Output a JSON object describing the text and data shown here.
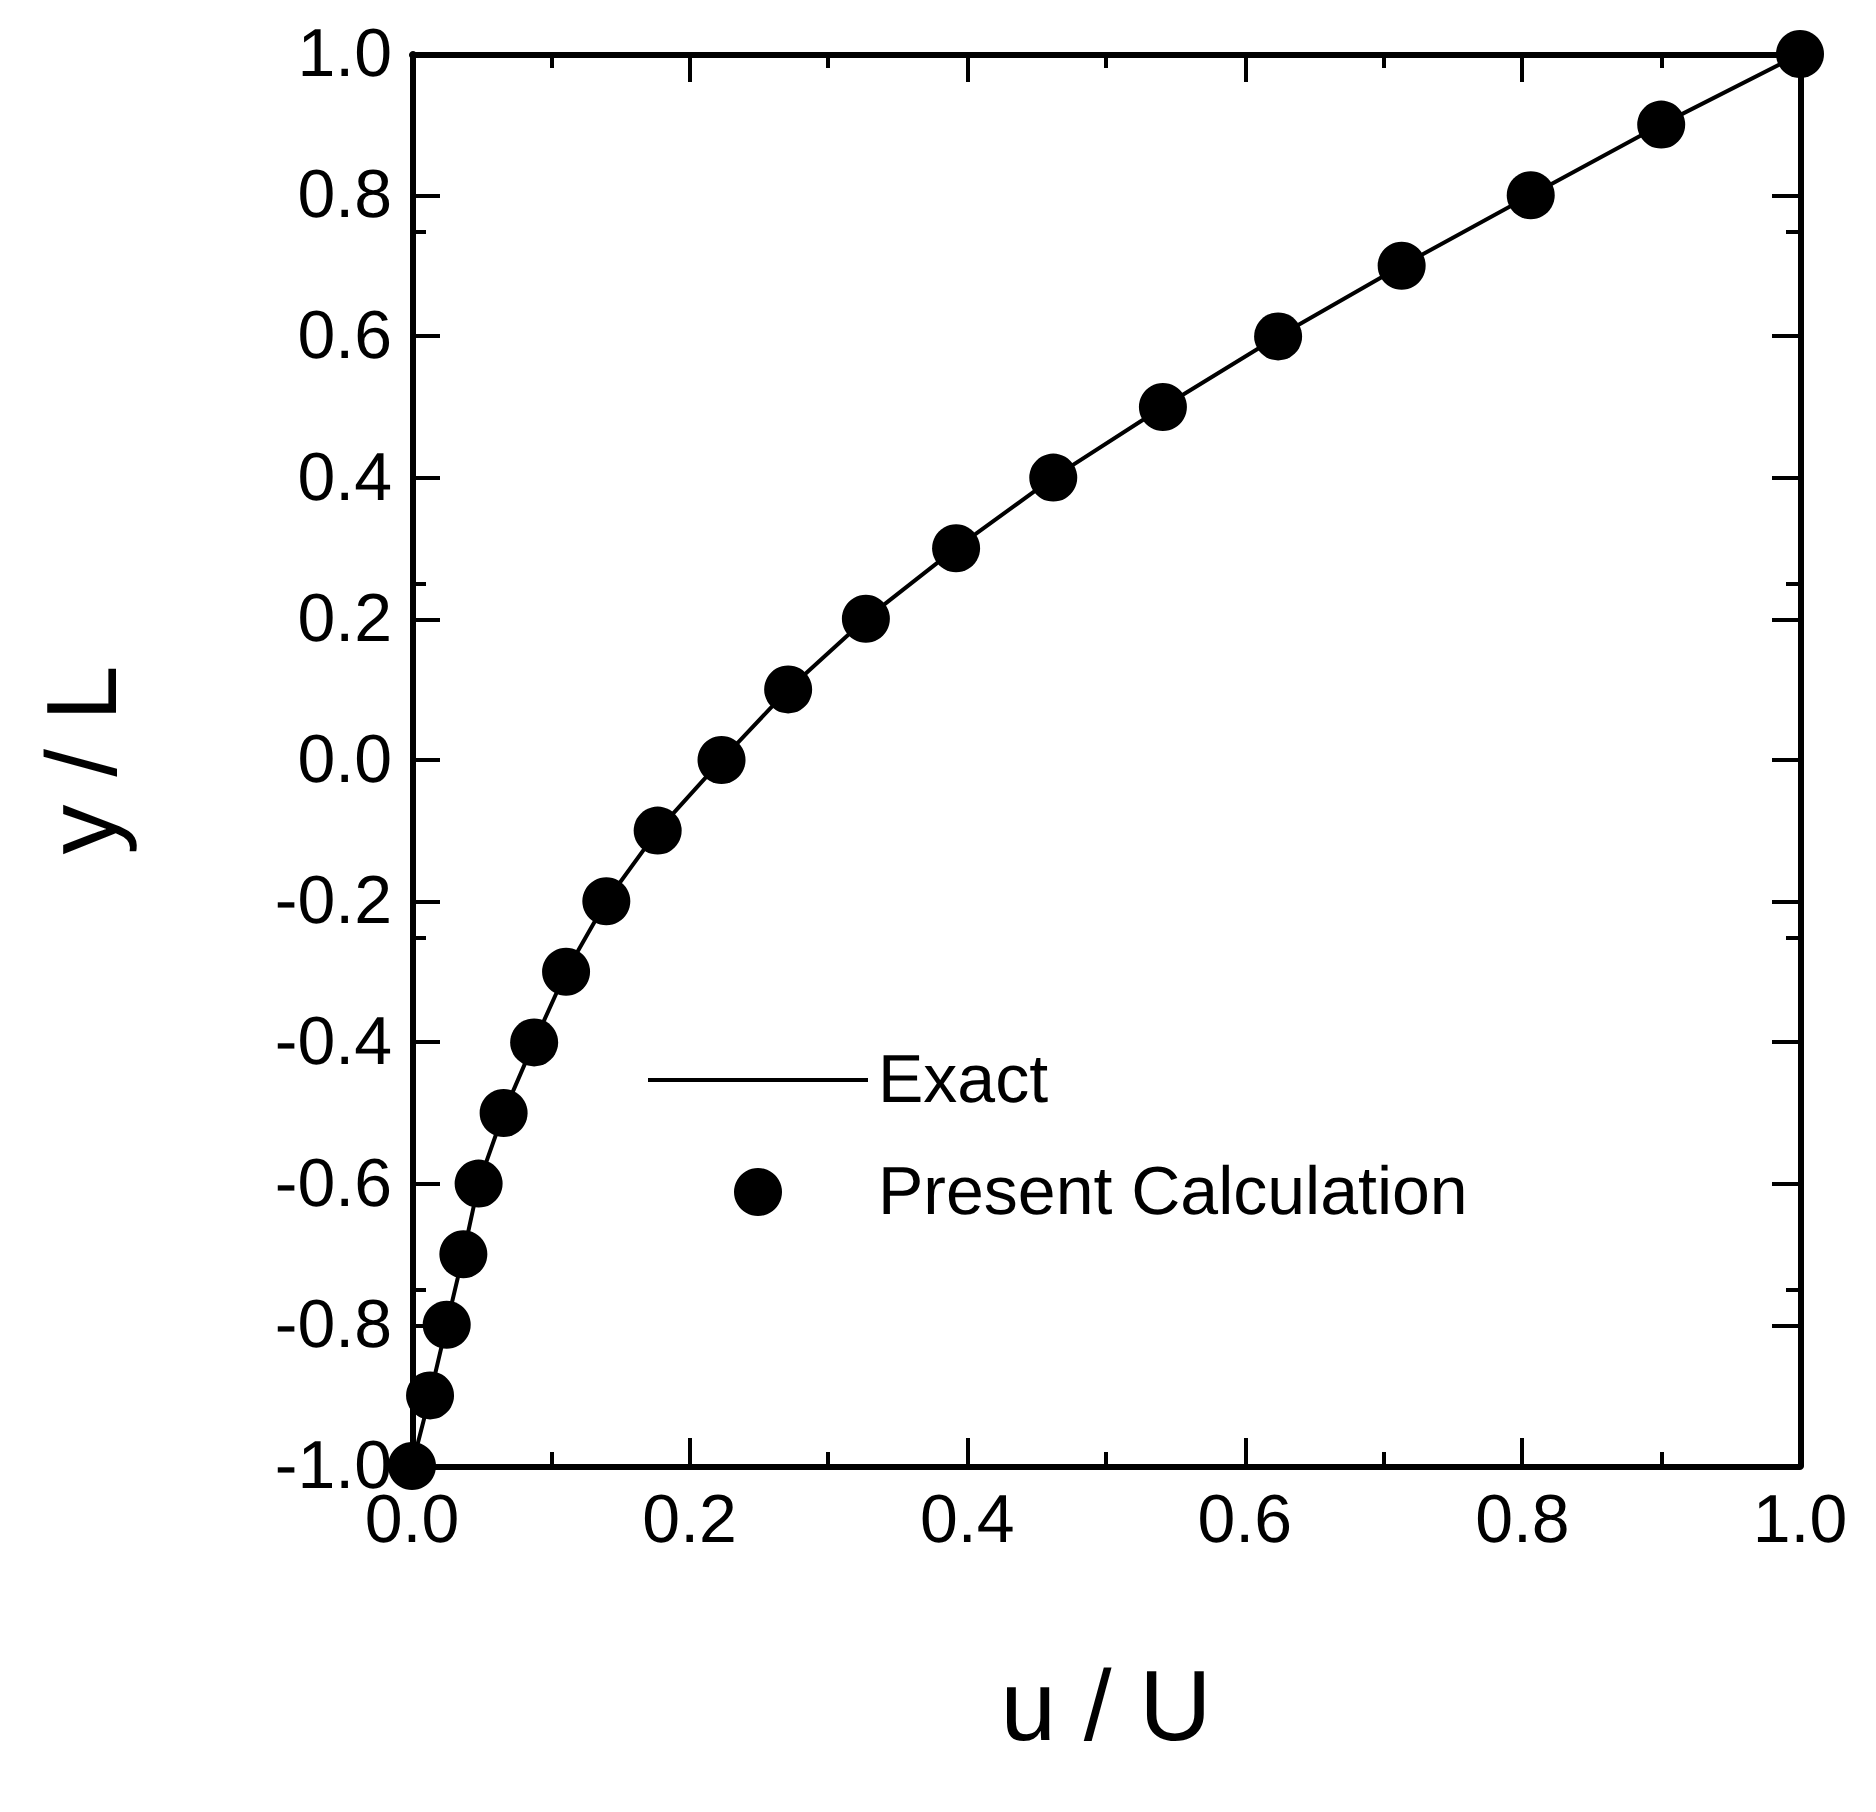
{
  "chart_data": {
    "type": "scatter",
    "xlabel": "u / U",
    "ylabel": "y / L",
    "xlim": [
      0,
      1
    ],
    "ylim": [
      -1,
      1
    ],
    "xticks": [
      {
        "value": 0,
        "label": "0.0"
      },
      {
        "value": 0.2,
        "label": "0.2"
      },
      {
        "value": 0.4,
        "label": "0.4"
      },
      {
        "value": 0.6,
        "label": "0.6"
      },
      {
        "value": 0.8,
        "label": "0.8"
      },
      {
        "value": 1,
        "label": "1.0"
      }
    ],
    "yticks": [
      {
        "value": -1,
        "label": "-1.0"
      },
      {
        "value": -0.8,
        "label": "-0.8"
      },
      {
        "value": -0.6,
        "label": "-0.6"
      },
      {
        "value": -0.4,
        "label": "-0.4"
      },
      {
        "value": -0.2,
        "label": "-0.2"
      },
      {
        "value": 0,
        "label": "0.0"
      },
      {
        "value": 0.2,
        "label": "0.2"
      },
      {
        "value": 0.4,
        "label": "0.4"
      },
      {
        "value": 0.6,
        "label": "0.6"
      },
      {
        "value": 0.8,
        "label": "0.8"
      },
      {
        "value": 1,
        "label": "1.0"
      }
    ],
    "grid": false,
    "legend": "right",
    "series": [
      {
        "name": "Exact",
        "type": "line",
        "color": "#000000",
        "marker": "none",
        "line_style": "solid",
        "x": [
          0,
          0.013,
          0.025,
          0.037,
          0.048,
          0.066,
          0.088,
          0.111,
          0.14,
          0.177,
          0.223,
          0.271,
          0.327,
          0.392,
          0.462,
          0.541,
          0.624,
          0.713,
          0.806,
          0.9,
          1
        ],
        "values": [
          -1,
          -0.9,
          -0.8,
          -0.7,
          -0.6,
          -0.5,
          -0.4,
          -0.3,
          -0.2,
          -0.1,
          0,
          0.1,
          0.2,
          0.3,
          0.4,
          0.5,
          0.6,
          0.7,
          0.8,
          0.9,
          1
        ]
      },
      {
        "name": "Present Calculation",
        "color": "#000000",
        "marker": "circle",
        "x": [
          0,
          0.013,
          0.025,
          0.037,
          0.048,
          0.066,
          0.088,
          0.111,
          0.14,
          0.177,
          0.223,
          0.271,
          0.327,
          0.392,
          0.462,
          0.541,
          0.624,
          0.713,
          0.806,
          0.9,
          1
        ],
        "values": [
          -1,
          -0.9,
          -0.8,
          -0.7,
          -0.6,
          -0.5,
          -0.4,
          -0.3,
          -0.2,
          -0.1,
          0,
          0.1,
          0.2,
          0.3,
          0.4,
          0.5,
          0.6,
          0.7,
          0.8,
          0.9,
          1
        ]
      }
    ]
  }
}
